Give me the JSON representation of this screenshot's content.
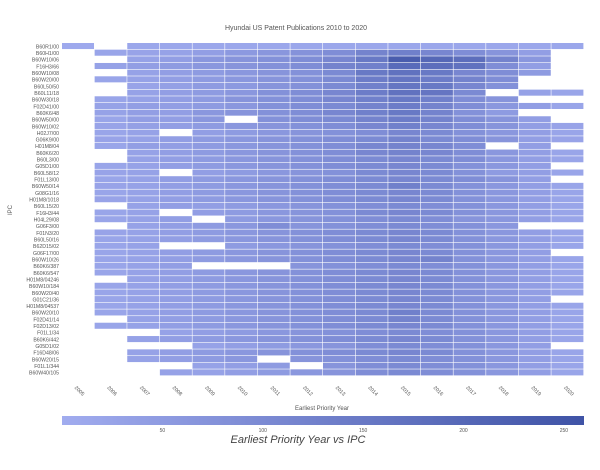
{
  "chart_data": {
    "type": "heatmap",
    "title": "Hyundai US Patent Publications 2010 to 2020",
    "xlabel": "Earliest Priority Year",
    "ylabel": "IPC",
    "subtitle": "Earliest Priority Year vs IPC",
    "x": [
      "2005",
      "2006",
      "2007",
      "2008",
      "2009",
      "2010",
      "2011",
      "2012",
      "2013",
      "2014",
      "2015",
      "2016",
      "2017",
      "2018",
      "2019",
      "2020"
    ],
    "y": [
      "B60R1/00",
      "B60H1/00",
      "B60W10/06",
      "F16H3/66",
      "B60W10/08",
      "B60W20/00",
      "B60L50/50",
      "B60L11/18",
      "B60W30/18",
      "F02D41/00",
      "B60K6/48",
      "B60W50/00",
      "B60W10/02",
      "H02J7/00",
      "G06K9/00",
      "H01M8/04",
      "B60K6/20",
      "B60L3/00",
      "G05D1/00",
      "B60L58/12",
      "F01L13/00",
      "B60W50/14",
      "G08G1/16",
      "H01M8/1018",
      "B60L15/20",
      "F16H3/44",
      "H04L29/08",
      "G06F3/00",
      "F01N3/20",
      "B60L50/16",
      "B62D15/02",
      "G06F17/00",
      "B60W10/26",
      "B60K6/387",
      "B60K6/547",
      "H01M8/04246",
      "B60W10/184",
      "B60W20/40",
      "G01C21/36",
      "H01M8/04537",
      "B60W20/10",
      "F02D41/14",
      "F02D13/02",
      "F01L1/34",
      "B60K6/442",
      "G05D1/02",
      "F16D48/06",
      "B60W20/15",
      "F01L1/344",
      "B60W40/105"
    ],
    "values": [
      [
        8,
        0,
        15,
        15,
        15,
        15,
        15,
        15,
        15,
        15,
        15,
        15,
        15,
        15,
        15,
        15
      ],
      [
        0,
        20,
        25,
        30,
        40,
        55,
        65,
        75,
        90,
        120,
        130,
        110,
        90,
        70,
        40,
        0
      ],
      [
        0,
        0,
        30,
        40,
        60,
        70,
        80,
        90,
        110,
        150,
        230,
        200,
        180,
        120,
        60,
        0
      ],
      [
        0,
        30,
        40,
        50,
        60,
        70,
        80,
        90,
        120,
        130,
        190,
        180,
        170,
        90,
        40,
        0
      ],
      [
        0,
        0,
        30,
        40,
        50,
        60,
        70,
        80,
        100,
        150,
        170,
        150,
        110,
        90,
        50,
        0
      ],
      [
        0,
        20,
        30,
        40,
        50,
        60,
        70,
        80,
        100,
        140,
        160,
        140,
        120,
        90,
        0,
        0
      ],
      [
        0,
        0,
        25,
        35,
        50,
        55,
        70,
        80,
        100,
        130,
        160,
        150,
        110,
        80,
        0,
        0
      ],
      [
        0,
        0,
        30,
        40,
        50,
        60,
        80,
        90,
        110,
        140,
        170,
        160,
        100,
        0,
        30,
        20
      ],
      [
        0,
        20,
        30,
        40,
        50,
        70,
        80,
        90,
        110,
        130,
        150,
        130,
        90,
        70,
        0,
        0
      ],
      [
        0,
        30,
        40,
        40,
        50,
        60,
        80,
        90,
        100,
        120,
        140,
        120,
        90,
        60,
        40,
        20
      ],
      [
        0,
        30,
        40,
        40,
        60,
        70,
        80,
        90,
        110,
        130,
        150,
        120,
        80,
        50,
        0,
        0
      ],
      [
        0,
        20,
        40,
        40,
        60,
        0,
        80,
        90,
        100,
        120,
        140,
        120,
        90,
        70,
        40,
        0
      ],
      [
        0,
        25,
        35,
        40,
        50,
        60,
        70,
        80,
        90,
        110,
        130,
        110,
        90,
        70,
        40,
        25
      ],
      [
        0,
        20,
        30,
        0,
        40,
        50,
        60,
        70,
        80,
        90,
        110,
        100,
        80,
        60,
        40,
        20
      ],
      [
        0,
        25,
        30,
        40,
        50,
        60,
        70,
        80,
        90,
        100,
        120,
        100,
        90,
        70,
        40,
        25
      ],
      [
        0,
        20,
        40,
        40,
        50,
        60,
        70,
        80,
        90,
        110,
        120,
        110,
        90,
        0,
        40,
        0
      ],
      [
        0,
        0,
        30,
        40,
        50,
        60,
        70,
        80,
        90,
        110,
        120,
        110,
        90,
        60,
        40,
        20
      ],
      [
        0,
        0,
        30,
        40,
        50,
        60,
        70,
        80,
        90,
        100,
        110,
        100,
        90,
        60,
        40,
        20
      ],
      [
        0,
        20,
        30,
        40,
        50,
        60,
        70,
        80,
        90,
        100,
        110,
        100,
        80,
        60,
        40,
        0
      ],
      [
        0,
        25,
        30,
        0,
        40,
        50,
        60,
        70,
        80,
        100,
        110,
        100,
        80,
        50,
        40,
        20
      ],
      [
        0,
        20,
        30,
        40,
        50,
        60,
        70,
        80,
        90,
        100,
        110,
        100,
        90,
        70,
        40,
        0
      ],
      [
        0,
        25,
        30,
        40,
        50,
        60,
        70,
        80,
        90,
        100,
        130,
        100,
        80,
        60,
        40,
        20
      ],
      [
        0,
        20,
        30,
        40,
        50,
        60,
        70,
        80,
        90,
        100,
        110,
        100,
        80,
        60,
        40,
        20
      ],
      [
        0,
        25,
        30,
        40,
        50,
        60,
        70,
        80,
        90,
        100,
        110,
        100,
        80,
        60,
        40,
        20
      ],
      [
        0,
        0,
        30,
        40,
        40,
        50,
        60,
        70,
        80,
        90,
        100,
        90,
        80,
        60,
        40,
        20
      ],
      [
        0,
        20,
        30,
        0,
        40,
        50,
        60,
        70,
        80,
        100,
        110,
        100,
        80,
        60,
        40,
        20
      ],
      [
        0,
        20,
        30,
        40,
        0,
        50,
        60,
        70,
        80,
        90,
        100,
        90,
        70,
        60,
        40,
        20
      ],
      [
        0,
        0,
        30,
        40,
        50,
        60,
        90,
        70,
        80,
        90,
        100,
        90,
        80,
        60,
        0,
        0
      ],
      [
        0,
        25,
        30,
        40,
        50,
        60,
        70,
        80,
        90,
        100,
        110,
        100,
        80,
        60,
        40,
        20
      ],
      [
        0,
        20,
        30,
        40,
        50,
        60,
        70,
        80,
        90,
        100,
        110,
        100,
        80,
        60,
        40,
        20
      ],
      [
        0,
        20,
        30,
        0,
        0,
        50,
        60,
        70,
        80,
        90,
        100,
        90,
        80,
        60,
        40,
        20
      ],
      [
        0,
        20,
        30,
        40,
        50,
        60,
        70,
        80,
        90,
        100,
        110,
        100,
        80,
        60,
        40,
        0
      ],
      [
        0,
        20,
        30,
        40,
        50,
        60,
        70,
        80,
        90,
        100,
        110,
        120,
        80,
        60,
        40,
        20
      ],
      [
        0,
        20,
        30,
        40,
        0,
        0,
        0,
        70,
        80,
        90,
        100,
        90,
        80,
        60,
        40,
        20
      ],
      [
        0,
        20,
        30,
        40,
        50,
        60,
        70,
        80,
        90,
        100,
        110,
        100,
        80,
        60,
        40,
        20
      ],
      [
        0,
        0,
        30,
        40,
        50,
        60,
        70,
        80,
        90,
        100,
        110,
        100,
        80,
        60,
        40,
        20
      ],
      [
        0,
        20,
        30,
        40,
        50,
        60,
        70,
        80,
        90,
        100,
        110,
        100,
        80,
        60,
        40,
        20
      ],
      [
        0,
        20,
        30,
        40,
        50,
        60,
        70,
        80,
        90,
        100,
        110,
        100,
        80,
        60,
        40,
        20
      ],
      [
        0,
        20,
        30,
        40,
        50,
        60,
        70,
        80,
        90,
        100,
        110,
        100,
        80,
        60,
        40,
        0
      ],
      [
        0,
        20,
        30,
        40,
        50,
        60,
        70,
        80,
        90,
        100,
        110,
        100,
        80,
        60,
        40,
        20
      ],
      [
        0,
        20,
        30,
        40,
        50,
        60,
        70,
        80,
        90,
        100,
        130,
        100,
        80,
        60,
        40,
        20
      ],
      [
        0,
        0,
        30,
        40,
        50,
        60,
        70,
        80,
        90,
        100,
        120,
        100,
        80,
        60,
        40,
        20
      ],
      [
        0,
        20,
        30,
        40,
        50,
        60,
        70,
        80,
        90,
        100,
        110,
        100,
        80,
        60,
        40,
        20
      ],
      [
        0,
        0,
        0,
        30,
        40,
        50,
        60,
        70,
        80,
        90,
        100,
        90,
        80,
        60,
        40,
        20
      ],
      [
        0,
        0,
        30,
        40,
        50,
        60,
        70,
        80,
        90,
        100,
        110,
        100,
        80,
        60,
        40,
        20
      ],
      [
        0,
        0,
        0,
        0,
        30,
        40,
        50,
        60,
        70,
        90,
        100,
        90,
        80,
        60,
        40,
        0
      ],
      [
        0,
        0,
        30,
        40,
        50,
        60,
        70,
        80,
        90,
        100,
        110,
        100,
        80,
        60,
        40,
        20
      ],
      [
        0,
        0,
        30,
        40,
        50,
        60,
        0,
        70,
        80,
        90,
        100,
        90,
        80,
        60,
        40,
        20
      ],
      [
        0,
        0,
        0,
        0,
        30,
        40,
        50,
        0,
        70,
        90,
        100,
        90,
        80,
        60,
        40,
        20
      ],
      [
        0,
        0,
        0,
        30,
        30,
        40,
        50,
        60,
        70,
        90,
        100,
        90,
        80,
        60,
        40,
        20
      ]
    ],
    "colorbar": {
      "min": 0,
      "max": 260,
      "ticks": [
        50,
        100,
        150,
        200,
        250
      ]
    },
    "colors": {
      "low": "#a1acef",
      "high": "#3f53a6",
      "empty": "#ffffff"
    },
    "grid": false
  }
}
